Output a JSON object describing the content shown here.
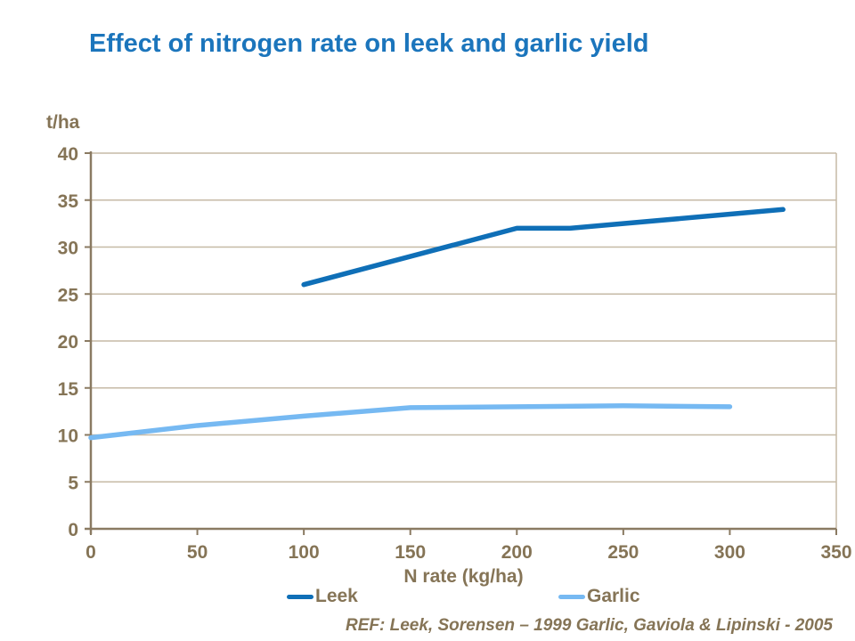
{
  "title": "Effect of nitrogen rate on leek and garlic yield",
  "footer": {
    "ref": "REF: Leek, Sorensen – 1999 Garlic, Gaviola & Lipinski - 2005"
  },
  "colors": {
    "title_blue": "#1B75BC",
    "axis_text": "#857456",
    "axis_line": "#8A7A62",
    "gridline": "#C6BAA6",
    "leek": "#0F6FB7",
    "garlic": "#76B9F2"
  },
  "chart_data": {
    "type": "line",
    "title": "Effect of nitrogen rate on leek and garlic yield",
    "xlabel": "N rate (kg/ha)",
    "ylabel": "t/ha",
    "xlim": [
      0,
      350
    ],
    "ylim": [
      0,
      40
    ],
    "xticks": [
      0,
      50,
      100,
      150,
      200,
      250,
      300,
      350
    ],
    "yticks": [
      0,
      5,
      10,
      15,
      20,
      25,
      30,
      35,
      40
    ],
    "grid": "horizontal",
    "legend_position": "bottom",
    "series": [
      {
        "name": "Leek",
        "color": "#0F6FB7",
        "x": [
          100,
          200,
          225,
          325
        ],
        "y": [
          26,
          32,
          32,
          34
        ]
      },
      {
        "name": "Garlic",
        "color": "#76B9F2",
        "x": [
          0,
          50,
          100,
          150,
          200,
          250,
          300
        ],
        "y": [
          9.7,
          11,
          12,
          12.9,
          13,
          13.1,
          13
        ]
      }
    ]
  }
}
